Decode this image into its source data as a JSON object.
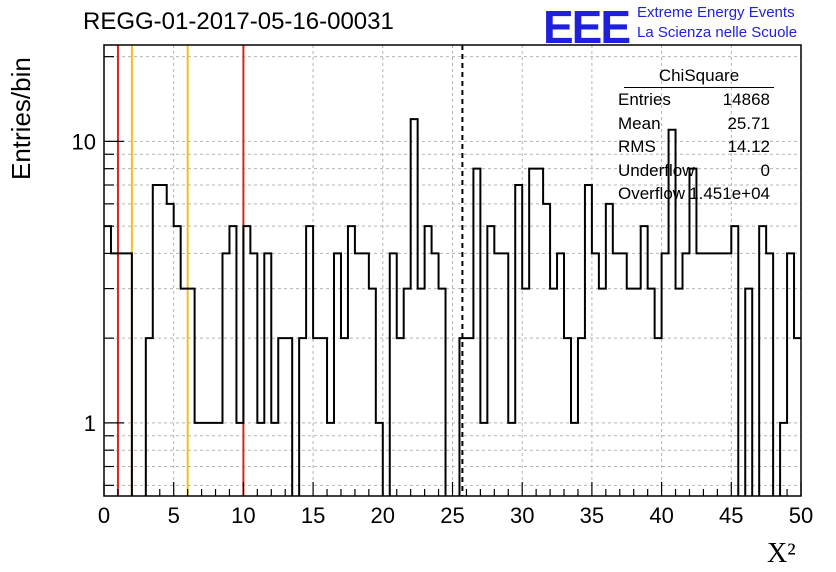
{
  "header": {
    "title": "REGG-01-2017-05-16-00031",
    "logo_text": "EEE",
    "logo_line1": "Extreme Energy Events",
    "logo_line2": "La Scienza nelle Scuole"
  },
  "stats_box": {
    "title": "ChiSquare",
    "rows": [
      {
        "label": "Entries",
        "value": "14868"
      },
      {
        "label": "Mean",
        "value": "25.71"
      },
      {
        "label": "RMS",
        "value": "14.12"
      },
      {
        "label": "Underflow",
        "value": "0"
      },
      {
        "label": "Overflow",
        "value": "1.451e+04"
      }
    ]
  },
  "colors": {
    "hist": "#000000",
    "red_line": "#dd2222",
    "yellow_line": "#f0c020",
    "grid": "#b4b4b4"
  },
  "chart_data": {
    "type": "histogram",
    "xlabel": "X²",
    "ylabel": "Entries/bin",
    "xlim": [
      0,
      50
    ],
    "ylim": [
      0.55,
      22
    ],
    "yscale": "log",
    "grid": true,
    "x_ticks": [
      0,
      5,
      10,
      15,
      20,
      25,
      30,
      35,
      40,
      45,
      50
    ],
    "y_ticks": [
      {
        "value": 1,
        "label": "1"
      },
      {
        "value": 10,
        "label": "10"
      }
    ],
    "bin_width": 0.5,
    "bin_values": [
      5,
      4,
      4,
      4,
      0,
      0,
      2,
      7,
      7,
      6,
      5,
      3,
      3,
      1,
      1,
      1,
      1,
      4,
      5,
      1,
      5,
      4,
      1,
      4,
      1,
      2,
      2,
      0,
      2,
      5,
      2,
      2,
      1,
      4,
      2,
      5,
      4,
      4,
      3,
      1,
      0,
      4,
      2,
      3,
      12,
      3,
      5,
      4,
      3,
      0,
      0,
      2,
      2,
      8,
      1,
      5,
      4,
      4,
      1,
      7,
      3,
      8,
      8,
      6,
      3,
      4,
      2,
      1,
      2,
      7,
      4,
      3,
      6,
      4,
      4,
      3,
      3,
      5,
      3,
      2,
      4,
      11,
      3,
      4,
      8,
      4,
      4,
      4,
      4,
      4,
      5,
      0,
      3,
      0,
      5,
      4,
      0,
      1,
      4,
      2
    ],
    "reference_lines": [
      {
        "x": 1.0,
        "color": "red",
        "style": "solid"
      },
      {
        "x": 2.0,
        "color": "yellow",
        "style": "solid"
      },
      {
        "x": 6.0,
        "color": "yellow",
        "style": "solid"
      },
      {
        "x": 10.0,
        "color": "red",
        "style": "solid"
      },
      {
        "x": 25.71,
        "color": "black",
        "style": "dashed"
      }
    ]
  }
}
